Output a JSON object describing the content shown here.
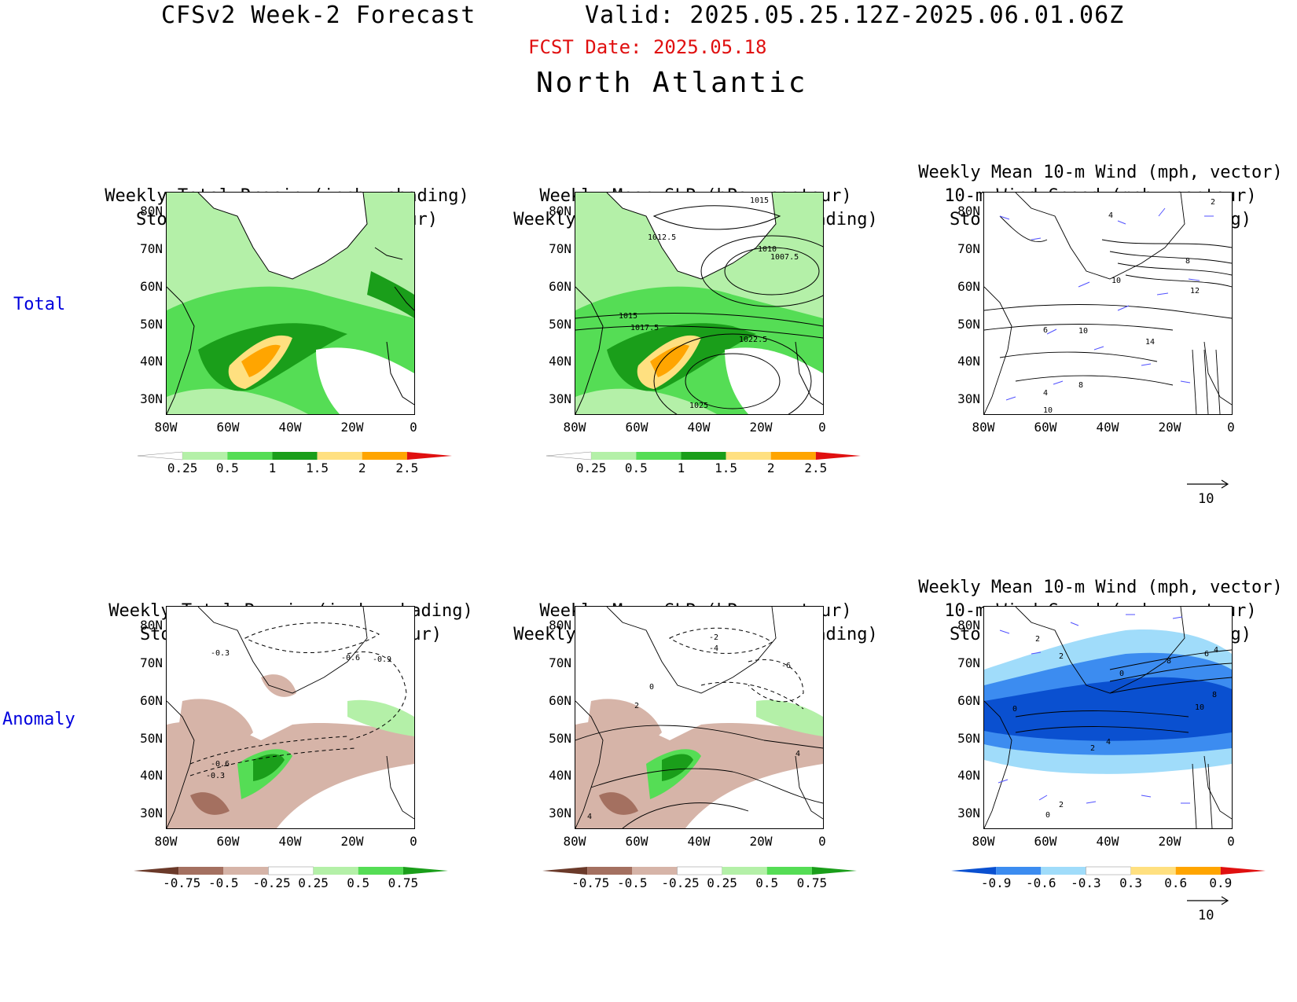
{
  "header": {
    "title_left": "CFSv2 Week-2 Forecast",
    "title_right": "Valid: 2025.05.25.12Z-2025.06.01.06Z",
    "fcst_date": "FCST Date: 2025.05.18",
    "region": "North Atlantic"
  },
  "rows": [
    {
      "label": "Total"
    },
    {
      "label": "Anomaly"
    }
  ],
  "panels": {
    "total_precip": {
      "title1": "Weekly Total Precip (inch, shading)",
      "title2": "Storm Track Density (contour)"
    },
    "total_slp": {
      "title1": "Weekly Mean SLP (hPa, contour)",
      "title2": "Weekly Total Precip (inch, shading)",
      "contour_labels": [
        "1015",
        "1012.5",
        "1010",
        "1007.5",
        "1015",
        "1017.5",
        "1022.5",
        "1025"
      ]
    },
    "total_wind": {
      "title1": "Weekly Mean 10-m Wind (mph, vector)",
      "title2": "10-m Wind Speed (mph, contour)",
      "title3": "Storm Track Density (shading)",
      "contour_labels": [
        "2",
        "4",
        "10",
        "8",
        "12",
        "6",
        "10",
        "14",
        "4",
        "8",
        "10"
      ]
    },
    "anom_precip": {
      "title1": "Weekly Total Precip (inch, shading)",
      "title2": "Storm Track Density (contour)",
      "contour_labels": [
        "-0.3",
        "-0.6",
        "-0.9",
        "-0.6",
        "-0.3"
      ]
    },
    "anom_slp": {
      "title1": "Weekly Mean SLP (hPa, contour)",
      "title2": "Weekly Total Precip (inch, shading)",
      "contour_labels": [
        "-2",
        "-4",
        "-6",
        "0",
        "2",
        "4",
        "4"
      ]
    },
    "anom_wind": {
      "title1": "Weekly Mean 10-m Wind (mph, vector)",
      "title2": "10-m Wind Speed (mph, contour)",
      "title3": "Storm Track Density (shading)",
      "contour_labels": [
        "2",
        "2",
        "0",
        "8",
        "6",
        "4",
        "0",
        "8",
        "10",
        "4",
        "2",
        "2",
        "0"
      ]
    }
  },
  "axes": {
    "lat_labels": [
      "80N",
      "70N",
      "60N",
      "50N",
      "40N",
      "30N"
    ],
    "lon_labels": [
      "80W",
      "60W",
      "40W",
      "20W",
      "0"
    ]
  },
  "colorbars": {
    "precip_total": {
      "labels": [
        "0.25",
        "0.5",
        "1",
        "1.5",
        "2",
        "2.5"
      ],
      "colors": [
        "#ffffff",
        "#b4f0a8",
        "#55dd55",
        "#1a9e1a",
        "#ffe080",
        "#ffa500",
        "#e01010"
      ]
    },
    "precip_anom": {
      "labels": [
        "-0.75",
        "-0.5",
        "-0.25",
        "0.25",
        "0.5",
        "0.75"
      ],
      "colors": [
        "#6b3a2a",
        "#a47060",
        "#d6b4a8",
        "#ffffff",
        "#b4f0a8",
        "#55dd55",
        "#1a9e1a"
      ]
    },
    "storm_anom": {
      "labels": [
        "-0.9",
        "-0.6",
        "-0.3",
        "0.3",
        "0.6",
        "0.9"
      ],
      "colors": [
        "#0a50d0",
        "#3c8cf0",
        "#a0dcfa",
        "#ffffff",
        "#ffe080",
        "#ffa500",
        "#e01010"
      ]
    }
  },
  "vector_ref": {
    "label": "10"
  },
  "colors": {
    "title_red": "#e01010",
    "row_label_blue": "#0000dd",
    "vector_blue": "#5050ff"
  }
}
